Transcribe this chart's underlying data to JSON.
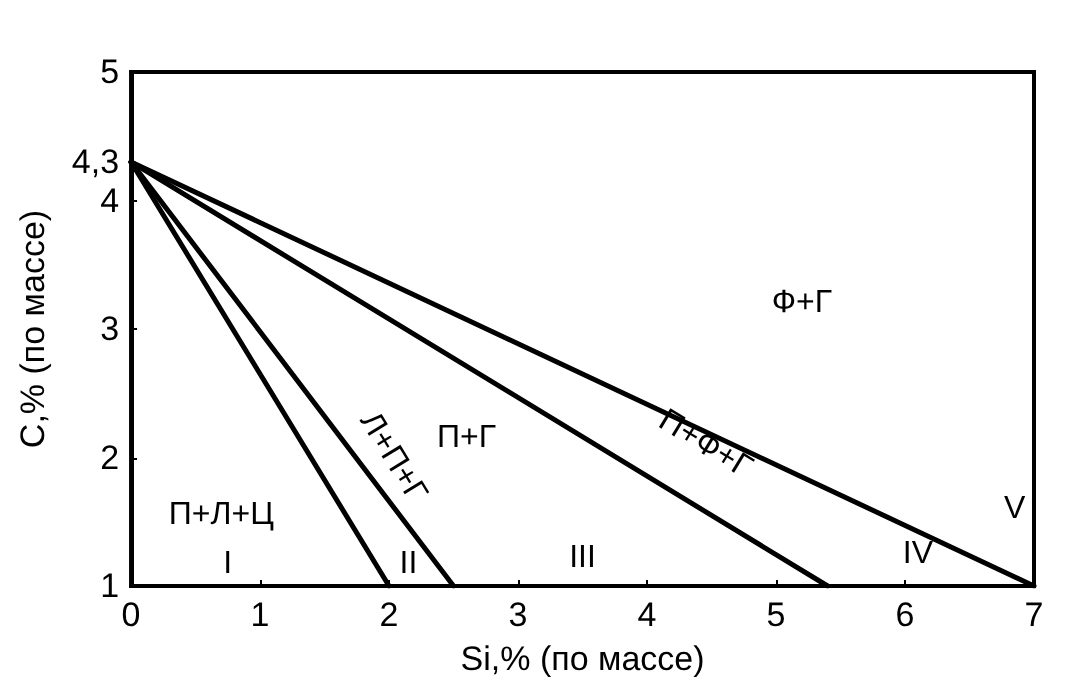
{
  "chart_data": {
    "type": "line",
    "xlabel": "Si,% (по массе)",
    "ylabel": "C,% (по массе)",
    "xlim": [
      0,
      7
    ],
    "ylim": [
      1,
      5
    ],
    "xticks": [
      0,
      1,
      2,
      3,
      4,
      5,
      6,
      7
    ],
    "yticks": [
      1,
      2,
      3,
      4,
      {
        "value": 4.3,
        "label": "4,3"
      },
      5
    ],
    "grid": false,
    "marker": "none",
    "line_style": "solid",
    "series": [
      {
        "color": "#000000",
        "x": [
          0,
          2
        ],
        "values": [
          4.3,
          1
        ]
      },
      {
        "color": "#000000",
        "x": [
          0,
          2.5
        ],
        "values": [
          4.3,
          1
        ]
      },
      {
        "color": "#000000",
        "x": [
          0,
          5.4
        ],
        "values": [
          4.3,
          1
        ]
      },
      {
        "color": "#000000",
        "x": [
          0,
          7
        ],
        "values": [
          4.3,
          1
        ]
      }
    ],
    "annotations": [
      "П+Л+Ц",
      "I",
      "II",
      "III",
      "IV",
      "V",
      "П+Г",
      "Ф+Г",
      "Л+П+Г",
      "П+Ф+Г"
    ]
  }
}
